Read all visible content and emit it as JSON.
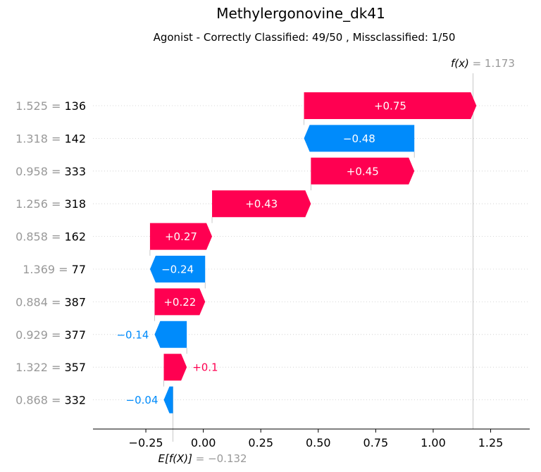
{
  "chart_data": {
    "type": "waterfall",
    "title": "Methylergonovine_dk41",
    "subtitle": "Agonist - Correctly Classified: 49/50 , Missclassified: 1/50",
    "base_value": -0.132,
    "base_value_text": "= −0.132",
    "base_label": "E[f(X)]",
    "output_value": 1.173,
    "output_value_text": "= 1.173",
    "output_label": "f(x)",
    "xlim": [
      -0.48,
      1.42
    ],
    "xticks": [
      -0.25,
      0.0,
      0.25,
      0.5,
      0.75,
      1.0,
      1.25
    ],
    "xtick_labels": [
      "−0.25",
      "0.00",
      "0.25",
      "0.50",
      "0.75",
      "1.00",
      "1.25"
    ],
    "features": [
      {
        "value": "1.525",
        "name": "136",
        "contribution": 0.75,
        "label": "+0.75"
      },
      {
        "value": "1.318",
        "name": "142",
        "contribution": -0.48,
        "label": "−0.48"
      },
      {
        "value": "0.958",
        "name": "333",
        "contribution": 0.45,
        "label": "+0.45"
      },
      {
        "value": "1.256",
        "name": "318",
        "contribution": 0.43,
        "label": "+0.43"
      },
      {
        "value": "0.858",
        "name": "162",
        "contribution": 0.27,
        "label": "+0.27"
      },
      {
        "value": "1.369",
        "name": "77",
        "contribution": -0.24,
        "label": "−0.24"
      },
      {
        "value": "0.884",
        "name": "387",
        "contribution": 0.22,
        "label": "+0.22"
      },
      {
        "value": "0.929",
        "name": "377",
        "contribution": -0.14,
        "label": "−0.14"
      },
      {
        "value": "1.322",
        "name": "357",
        "contribution": 0.1,
        "label": "+0.1"
      },
      {
        "value": "0.868",
        "name": "332",
        "contribution": -0.04,
        "label": "−0.04"
      }
    ],
    "colors": {
      "positive": "#ff0051",
      "negative": "#008bfb",
      "positive_text_outside": "#ff0051",
      "negative_text_outside": "#008bfb"
    }
  }
}
